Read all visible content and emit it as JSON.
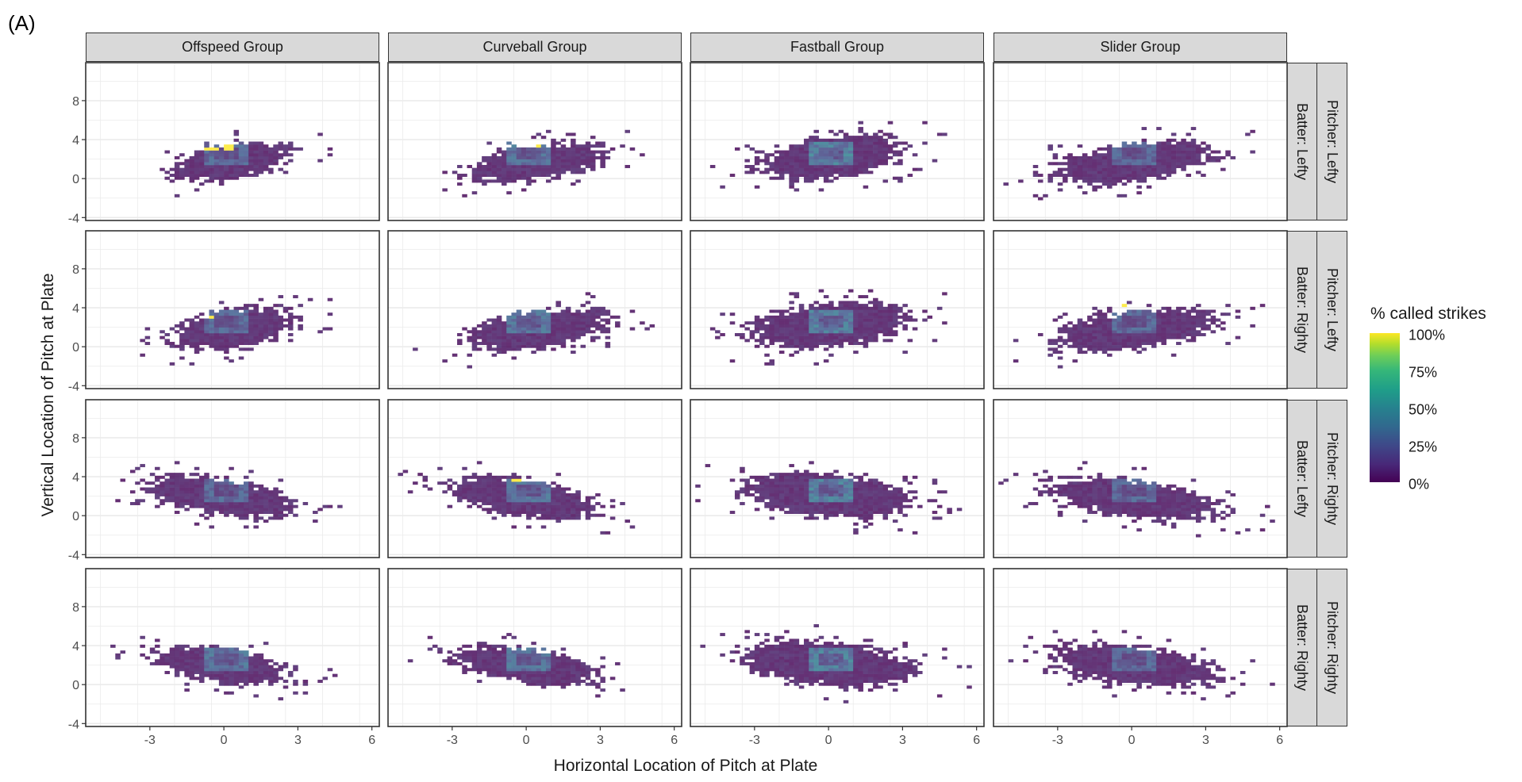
{
  "panel_tag": "(A)",
  "chart_data": {
    "type": "heatmap",
    "title": "",
    "xlabel": "Horizontal Location of Pitch at Plate",
    "ylabel": "Vertical Location of Pitch at Plate",
    "xlim": [
      -5.6,
      6.3
    ],
    "ylim": [
      -4.3,
      11.9
    ],
    "x_ticks": [
      -3,
      0,
      3,
      6
    ],
    "x_tick_labels": [
      "-3",
      "0",
      "3",
      "6"
    ],
    "y_ticks": [
      -4,
      0,
      4,
      8
    ],
    "y_tick_labels": [
      "-4",
      "0",
      "4",
      "8"
    ],
    "grid": true,
    "bin_width": {
      "x": 0.2,
      "y": 0.3
    },
    "columns": [
      "Offspeed Group",
      "Curveball Group",
      "Fastball Group",
      "Slider Group"
    ],
    "rows": [
      {
        "batter": "Batter: Lefty",
        "pitcher": "Pitcher: Lefty"
      },
      {
        "batter": "Batter: Righty",
        "pitcher": "Pitcher: Lefty"
      },
      {
        "batter": "Batter: Lefty",
        "pitcher": "Pitcher: Righty"
      },
      {
        "batter": "Batter: Righty",
        "pitcher": "Pitcher: Righty"
      }
    ],
    "legend": {
      "title": "% called strikes",
      "labels": [
        "100%",
        "75%",
        "50%",
        "25%",
        "0%"
      ],
      "placement": "right",
      "scale": "viridis",
      "range": [
        0,
        100
      ]
    },
    "panels": [
      {
        "row": 0,
        "col": 0,
        "cx": 0.2,
        "cy": 1.6,
        "sx": 1.3,
        "sy": 1.1,
        "rho": 0.45,
        "zone": 0.25,
        "hot": [
          [
            -0.6,
            2.8
          ],
          [
            0.1,
            3.0
          ]
        ]
      },
      {
        "row": 0,
        "col": 1,
        "cx": 0.3,
        "cy": 1.5,
        "sx": 1.5,
        "sy": 1.1,
        "rho": 0.45,
        "zone": 0.3,
        "hot": [
          [
            0.2,
            3.3
          ]
        ]
      },
      {
        "row": 0,
        "col": 2,
        "cx": 0.0,
        "cy": 2.0,
        "sx": 1.6,
        "sy": 1.3,
        "rho": 0.35,
        "zone": 0.35,
        "hot": []
      },
      {
        "row": 0,
        "col": 3,
        "cx": 0.0,
        "cy": 1.5,
        "sx": 1.8,
        "sy": 1.2,
        "rho": 0.45,
        "zone": 0.25,
        "hot": []
      },
      {
        "row": 1,
        "col": 0,
        "cx": 0.3,
        "cy": 1.7,
        "sx": 1.4,
        "sy": 1.2,
        "rho": 0.4,
        "zone": 0.25,
        "hot": [
          [
            -0.7,
            2.8
          ]
        ]
      },
      {
        "row": 1,
        "col": 1,
        "cx": 0.4,
        "cy": 1.6,
        "sx": 1.6,
        "sy": 1.2,
        "rho": 0.45,
        "zone": 0.3,
        "hot": []
      },
      {
        "row": 1,
        "col": 2,
        "cx": 0.0,
        "cy": 2.0,
        "sx": 1.8,
        "sy": 1.3,
        "rho": 0.3,
        "zone": 0.35,
        "hot": []
      },
      {
        "row": 1,
        "col": 3,
        "cx": 0.0,
        "cy": 1.6,
        "sx": 1.8,
        "sy": 1.2,
        "rho": 0.45,
        "zone": 0.25,
        "hot": [
          [
            -0.6,
            3.9
          ]
        ]
      },
      {
        "row": 2,
        "col": 0,
        "cx": -0.3,
        "cy": 1.8,
        "sx": 1.6,
        "sy": 1.2,
        "rho": -0.5,
        "zone": 0.25,
        "hot": []
      },
      {
        "row": 2,
        "col": 1,
        "cx": -0.2,
        "cy": 1.7,
        "sx": 1.6,
        "sy": 1.2,
        "rho": -0.5,
        "zone": 0.3,
        "hot": [
          [
            -0.5,
            3.5
          ]
        ]
      },
      {
        "row": 2,
        "col": 2,
        "cx": -0.2,
        "cy": 2.0,
        "sx": 1.9,
        "sy": 1.3,
        "rho": -0.3,
        "zone": 0.35,
        "hot": []
      },
      {
        "row": 2,
        "col": 3,
        "cx": 0.0,
        "cy": 1.6,
        "sx": 1.9,
        "sy": 1.2,
        "rho": -0.5,
        "zone": 0.25,
        "hot": []
      },
      {
        "row": 3,
        "col": 0,
        "cx": -0.2,
        "cy": 1.8,
        "sx": 1.5,
        "sy": 1.1,
        "rho": -0.45,
        "zone": 0.3,
        "hot": []
      },
      {
        "row": 3,
        "col": 1,
        "cx": -0.1,
        "cy": 1.8,
        "sx": 1.6,
        "sy": 1.1,
        "rho": -0.5,
        "zone": 0.3,
        "hot": []
      },
      {
        "row": 3,
        "col": 2,
        "cx": -0.1,
        "cy": 2.0,
        "sx": 1.9,
        "sy": 1.3,
        "rho": -0.3,
        "zone": 0.35,
        "hot": []
      },
      {
        "row": 3,
        "col": 3,
        "cx": 0.0,
        "cy": 1.8,
        "sx": 1.9,
        "sy": 1.2,
        "rho": -0.45,
        "zone": 0.25,
        "hot": []
      }
    ]
  }
}
